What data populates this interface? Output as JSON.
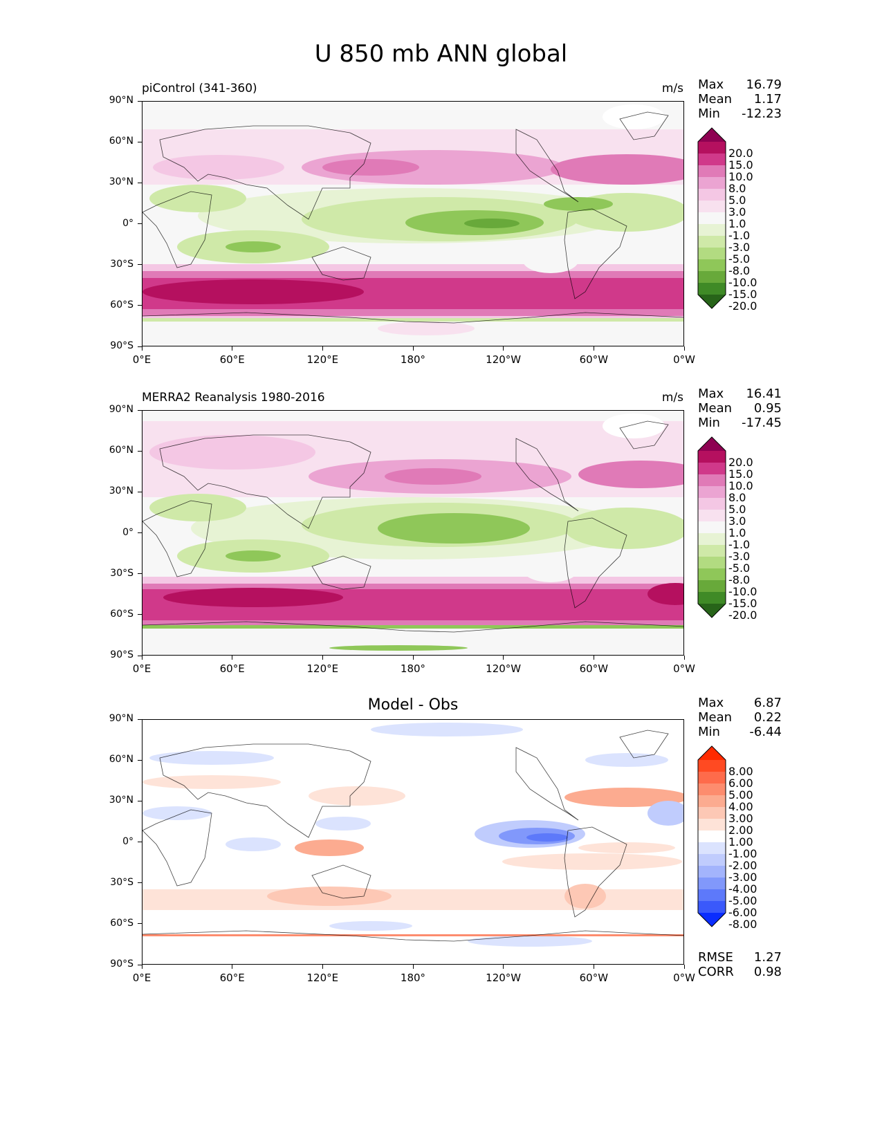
{
  "title": "U 850 mb ANN global",
  "x_ticks": [
    "0°E",
    "60°E",
    "120°E",
    "180°",
    "120°W",
    "60°W",
    "0°W"
  ],
  "y_ticks": [
    "90°N",
    "60°N",
    "30°N",
    "0°",
    "30°S",
    "60°S",
    "90°S"
  ],
  "panels": [
    {
      "left_title": "piControl (341-360)",
      "center_title": "",
      "units": "m/s",
      "stats": {
        "max_label": "Max",
        "max": "16.79",
        "mean_label": "Mean",
        "mean": "1.17",
        "min_label": "Min",
        "min": "-12.23"
      },
      "colorbar": {
        "labels": [
          "20.0",
          "15.0",
          "10.0",
          "8.0",
          "5.0",
          "3.0",
          "1.0",
          "-1.0",
          "-3.0",
          "-5.0",
          "-8.0",
          "-10.0",
          "-15.0",
          "-20.0"
        ],
        "colors": [
          "#8e0152",
          "#b5105f",
          "#d0398a",
          "#e07ab7",
          "#eba4d2",
          "#f4c7e4",
          "#f8e1ef",
          "#f7f7f7",
          "#e7f3d4",
          "#cfe9a8",
          "#b2db81",
          "#8fc759",
          "#68a93a",
          "#3f8a26",
          "#276419"
        ]
      }
    },
    {
      "left_title": "MERRA2 Reanalysis 1980-2016",
      "center_title": "",
      "units": "m/s",
      "stats": {
        "max_label": "Max",
        "max": "16.41",
        "mean_label": "Mean",
        "mean": "0.95",
        "min_label": "Min",
        "min": "-17.45"
      },
      "colorbar": {
        "labels": [
          "20.0",
          "15.0",
          "10.0",
          "8.0",
          "5.0",
          "3.0",
          "1.0",
          "-1.0",
          "-3.0",
          "-5.0",
          "-8.0",
          "-10.0",
          "-15.0",
          "-20.0"
        ],
        "colors": [
          "#8e0152",
          "#b5105f",
          "#d0398a",
          "#e07ab7",
          "#eba4d2",
          "#f4c7e4",
          "#f8e1ef",
          "#f7f7f7",
          "#e7f3d4",
          "#cfe9a8",
          "#b2db81",
          "#8fc759",
          "#68a93a",
          "#3f8a26",
          "#276419"
        ]
      }
    },
    {
      "left_title": "",
      "center_title": "Model - Obs",
      "units": "",
      "stats": {
        "max_label": "Max",
        "max": "6.87",
        "mean_label": "Mean",
        "mean": "0.22",
        "min_label": "Min",
        "min": "-6.44"
      },
      "metrics": {
        "rmse_label": "RMSE",
        "rmse": "1.27",
        "corr_label": "CORR",
        "corr": "0.98"
      },
      "colorbar": {
        "labels": [
          "8.00",
          "6.00",
          "5.00",
          "4.00",
          "3.00",
          "2.00",
          "1.00",
          "-1.00",
          "-2.00",
          "-3.00",
          "-4.00",
          "-5.00",
          "-6.00",
          "-8.00"
        ],
        "colors": [
          "#ff2a00",
          "#ff4a22",
          "#fe6b4b",
          "#fd8c6e",
          "#fcab90",
          "#fdc8b5",
          "#fee3d8",
          "#ffffff",
          "#dbe3fe",
          "#c0ccfd",
          "#a3b4fc",
          "#8198fb",
          "#5d79fa",
          "#3a59fb",
          "#0a2dfe"
        ]
      }
    }
  ]
}
